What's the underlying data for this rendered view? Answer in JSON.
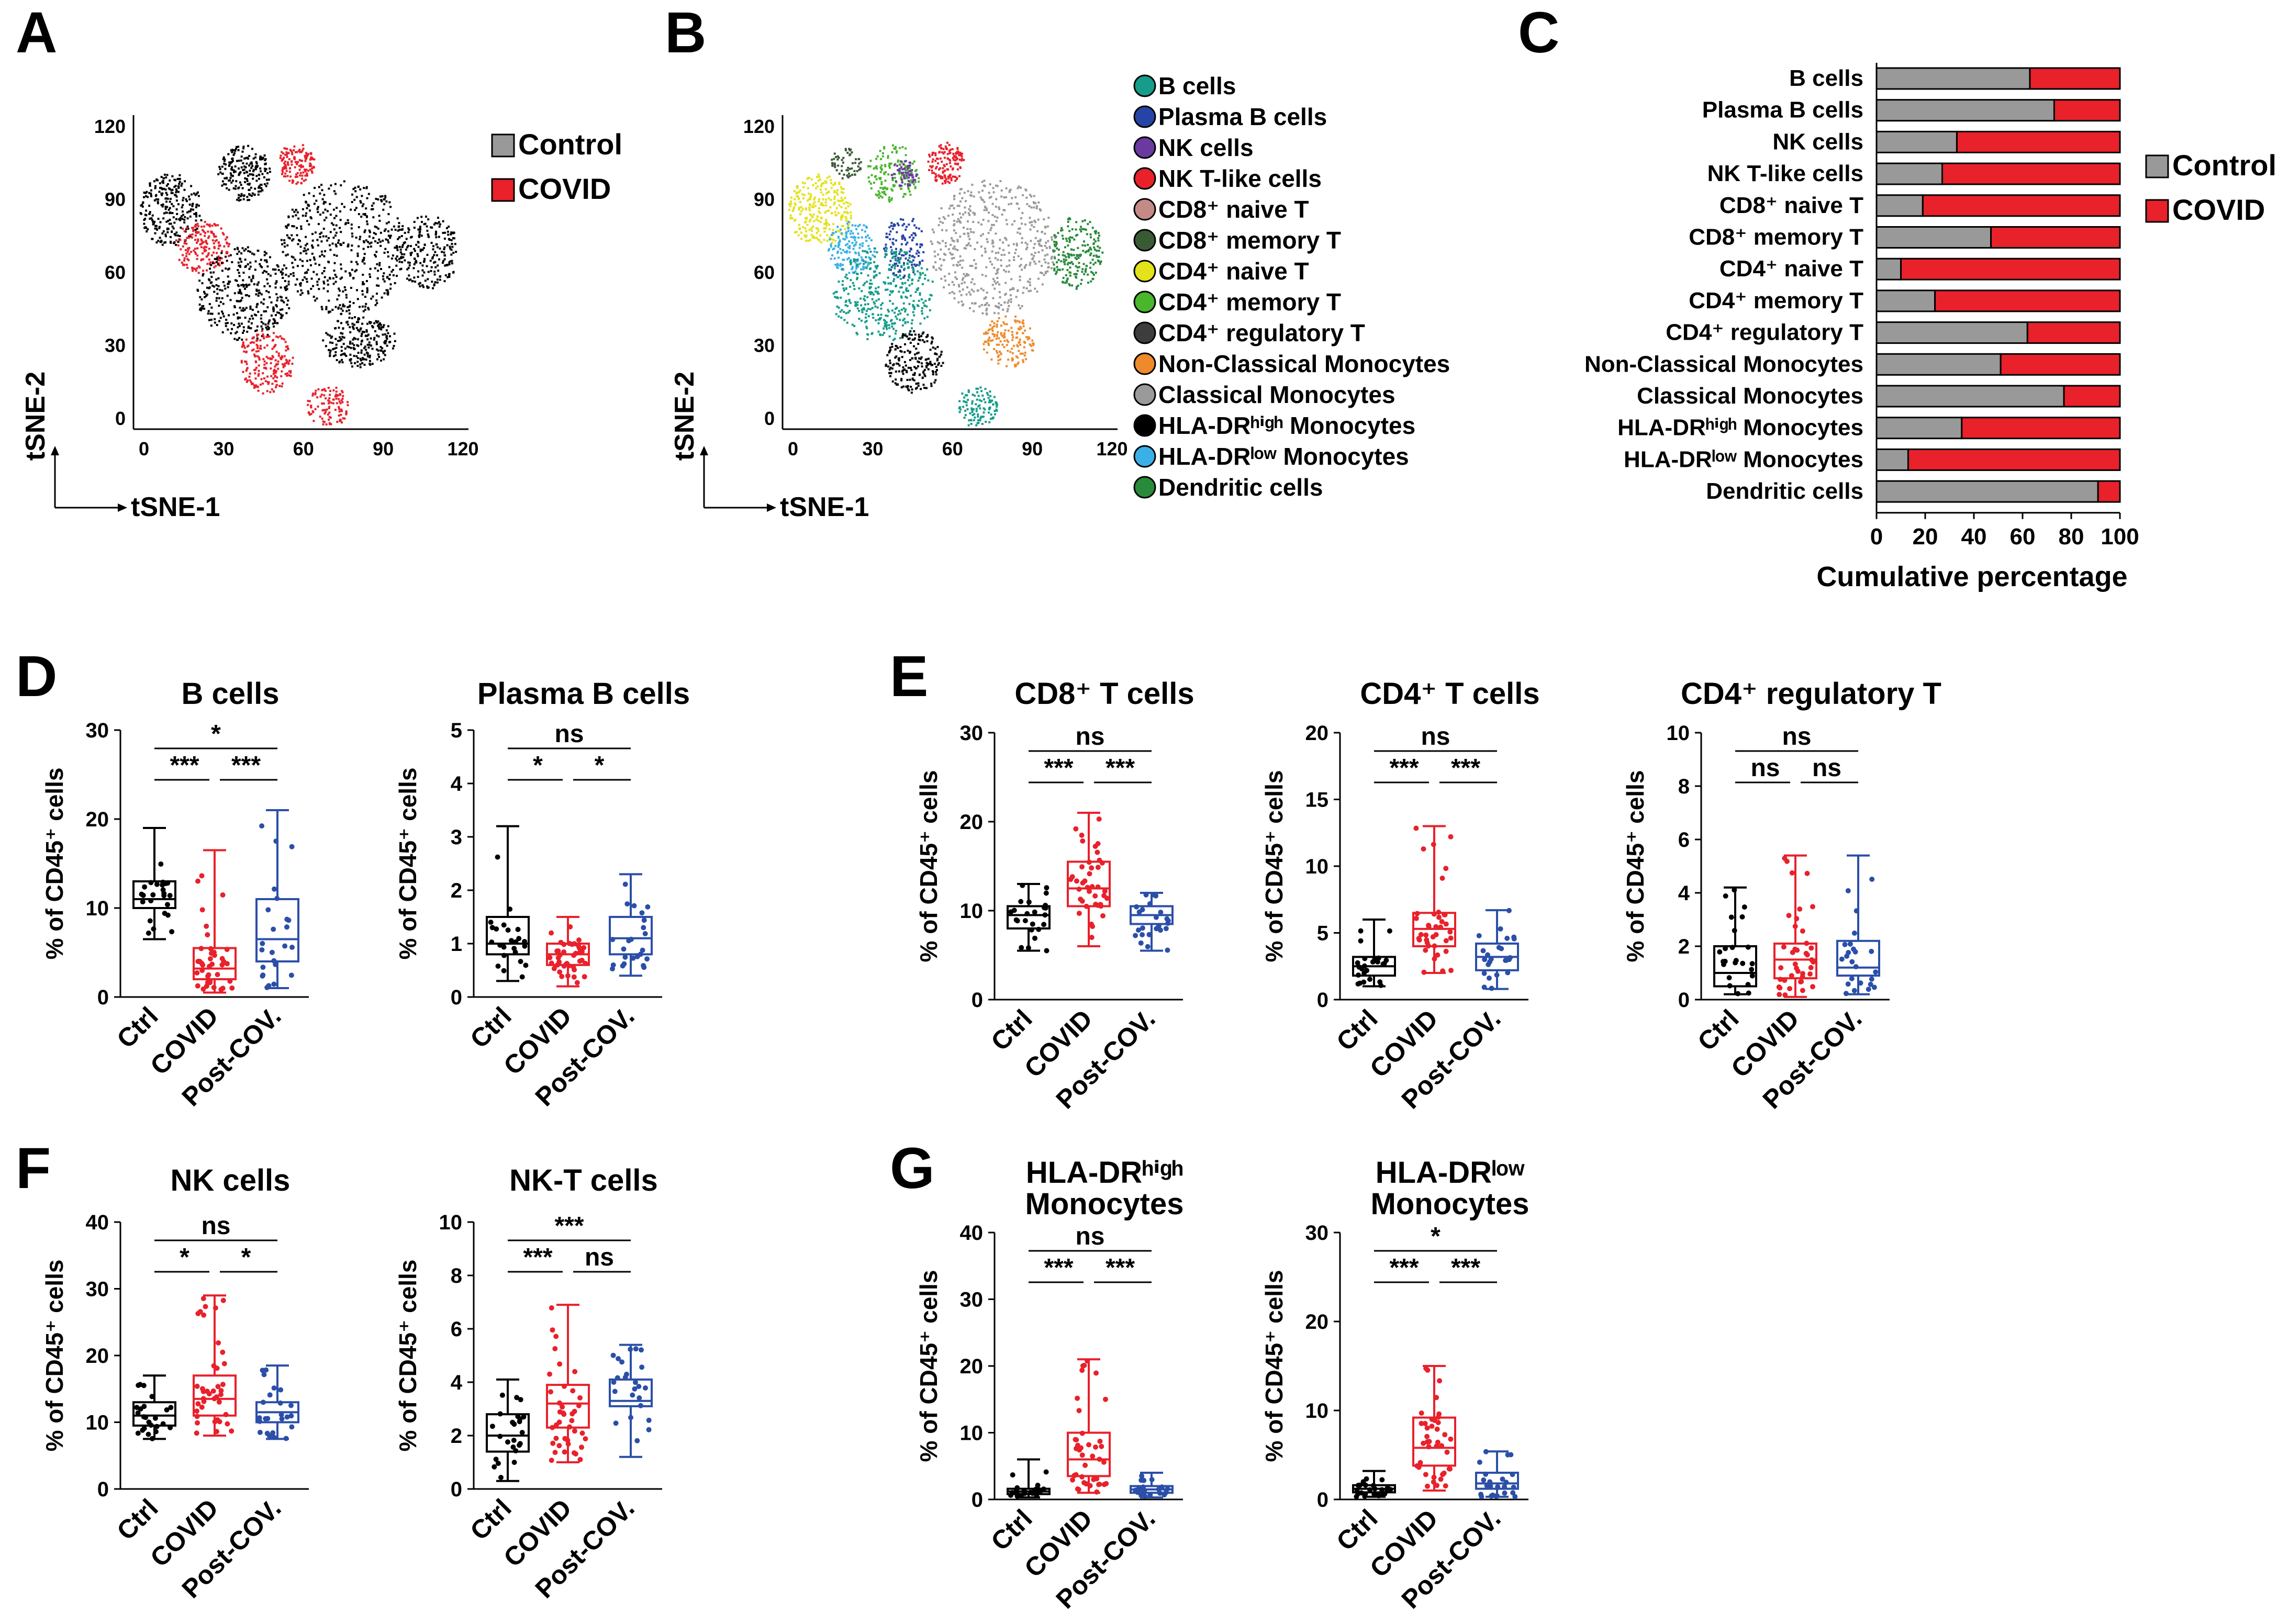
{
  "colors": {
    "control": "#000000",
    "covid": "#e8212b",
    "post": "#2b4fa8",
    "ctrlbar": "#999999"
  },
  "panel_labels": [
    "A",
    "B",
    "C",
    "D",
    "E",
    "F",
    "G"
  ],
  "tsne": {
    "xlabel": "tSNE-1",
    "ylabel": "tSNE-2",
    "ticks": [
      "0",
      "30",
      "60",
      "90",
      "120"
    ],
    "legendA": [
      "Control",
      "COVID"
    ],
    "legendB": [
      {
        "label": "B cells",
        "color": "#159c8a"
      },
      {
        "label": "Plasma B cells",
        "color": "#2643a6"
      },
      {
        "label": "NK cells",
        "color": "#6a3aa0"
      },
      {
        "label": "NK T-like cells",
        "color": "#e8212b"
      },
      {
        "label": "CD8⁺ naive T",
        "color": "#c48b86"
      },
      {
        "label": "CD8⁺ memory T",
        "color": "#3a5a36"
      },
      {
        "label": "CD4⁺ naive T",
        "color": "#e3e21b"
      },
      {
        "label": "CD4⁺ memory T",
        "color": "#49b62c"
      },
      {
        "label": "CD4⁺ regulatory T",
        "color": "#3d3d3d"
      },
      {
        "label": "Non-Classical Monocytes",
        "color": "#ee8a2c"
      },
      {
        "label": "Classical Monocytes",
        "color": "#9a9a9a"
      },
      {
        "label": "HLA-DRʰⁱᵍʰ Monocytes",
        "color": "#000000"
      },
      {
        "label": "HLA-DRˡᵒʷ Monocytes",
        "color": "#3ab0e6"
      },
      {
        "label": "Dendritic cells",
        "color": "#2a8a3c"
      }
    ]
  },
  "chart_data": [
    {
      "type": "bar",
      "panel": "C",
      "stacked": true,
      "orientation": "horizontal",
      "categories": [
        "B cells",
        "Plasma B cells",
        "NK cells",
        "NK T-like cells",
        "CD8⁺ naive T",
        "CD8⁺ memory T",
        "CD4⁺ naive T",
        "CD4⁺ memory T",
        "CD4⁺ regulatory T",
        "Non-Classical Monocytes",
        "Classical Monocytes",
        "HLA-DRʰⁱᵍʰ Monocytes",
        "HLA-DRˡᵒʷ Monocytes",
        "Dendritic cells"
      ],
      "series": [
        {
          "name": "Control",
          "values": [
            63,
            73,
            33,
            27,
            19,
            47,
            10,
            24,
            62,
            51,
            77,
            35,
            13,
            91
          ]
        },
        {
          "name": "COVID",
          "values": [
            37,
            27,
            67,
            73,
            81,
            53,
            90,
            76,
            38,
            49,
            23,
            65,
            87,
            9
          ]
        }
      ],
      "xlabel": "Cumulative percentage",
      "xlim": [
        0,
        100
      ],
      "xticks": [
        "0",
        "20",
        "40",
        "60",
        "80",
        "100"
      ],
      "legend": [
        "Control",
        "COVID"
      ]
    },
    {
      "type": "box",
      "panel": "D",
      "title": "B cells",
      "ylabel": "% of CD45⁺ cells",
      "ylim": [
        0,
        30
      ],
      "yticks": [
        "0",
        "10",
        "20",
        "30"
      ],
      "categories": [
        "Ctrl",
        "COVID",
        "Post-COV."
      ],
      "boxes": [
        {
          "min": 6.5,
          "q1": 10,
          "median": 11,
          "q3": 13,
          "max": 19
        },
        {
          "min": 0.5,
          "q1": 2,
          "median": 3.2,
          "q3": 5.5,
          "max": 16.5
        },
        {
          "min": 1,
          "q1": 4,
          "median": 6.5,
          "q3": 11,
          "max": 21
        }
      ],
      "sig": {
        "left": "***",
        "right": "***",
        "top": "*"
      }
    },
    {
      "type": "box",
      "panel": "D",
      "title": "Plasma B cells",
      "ylabel": "% of CD45⁺ cells",
      "ylim": [
        0,
        5
      ],
      "yticks": [
        "0",
        "1",
        "2",
        "3",
        "4",
        "5"
      ],
      "categories": [
        "Ctrl",
        "COVID",
        "Post-COV."
      ],
      "boxes": [
        {
          "min": 0.3,
          "q1": 0.8,
          "median": 1.0,
          "q3": 1.5,
          "max": 3.2
        },
        {
          "min": 0.2,
          "q1": 0.6,
          "median": 0.8,
          "q3": 1.0,
          "max": 1.5
        },
        {
          "min": 0.4,
          "q1": 0.8,
          "median": 1.1,
          "q3": 1.5,
          "max": 2.3
        }
      ],
      "sig": {
        "left": "*",
        "right": "*",
        "top": "ns"
      }
    },
    {
      "type": "box",
      "panel": "E",
      "title": "CD8⁺ T cells",
      "ylabel": "% of CD45⁺ cells",
      "ylim": [
        0,
        30
      ],
      "yticks": [
        "0",
        "10",
        "20",
        "30"
      ],
      "categories": [
        "Ctrl",
        "COVID",
        "Post-COV."
      ],
      "boxes": [
        {
          "min": 5.5,
          "q1": 8,
          "median": 9.5,
          "q3": 10.5,
          "max": 13
        },
        {
          "min": 6,
          "q1": 10.5,
          "median": 12.5,
          "q3": 15.5,
          "max": 21
        },
        {
          "min": 5.5,
          "q1": 8.5,
          "median": 9.5,
          "q3": 10.5,
          "max": 12
        }
      ],
      "sig": {
        "left": "***",
        "right": "***",
        "top": "ns"
      }
    },
    {
      "type": "box",
      "panel": "E",
      "title": "CD4⁺ T cells",
      "ylabel": "% of CD45⁺ cells",
      "ylim": [
        0,
        20
      ],
      "yticks": [
        "0",
        "5",
        "10",
        "15",
        "20"
      ],
      "categories": [
        "Ctrl",
        "COVID",
        "Post-COV."
      ],
      "boxes": [
        {
          "min": 1,
          "q1": 1.8,
          "median": 2.5,
          "q3": 3.2,
          "max": 6
        },
        {
          "min": 2,
          "q1": 4,
          "median": 5.3,
          "q3": 6.5,
          "max": 13
        },
        {
          "min": 0.8,
          "q1": 2.2,
          "median": 3.2,
          "q3": 4.2,
          "max": 6.7
        }
      ],
      "sig": {
        "left": "***",
        "right": "***",
        "top": "ns"
      }
    },
    {
      "type": "box",
      "panel": "E",
      "title": "CD4⁺ regulatory T",
      "ylabel": "% of CD45⁺ cells",
      "ylim": [
        0,
        10
      ],
      "yticks": [
        "0",
        "2",
        "4",
        "6",
        "8",
        "10"
      ],
      "categories": [
        "Ctrl",
        "COVID",
        "Post-COV."
      ],
      "boxes": [
        {
          "min": 0.2,
          "q1": 0.5,
          "median": 1.0,
          "q3": 2.0,
          "max": 4.2
        },
        {
          "min": 0.1,
          "q1": 0.8,
          "median": 1.5,
          "q3": 2.1,
          "max": 5.4
        },
        {
          "min": 0.2,
          "q1": 0.9,
          "median": 1.2,
          "q3": 2.2,
          "max": 5.4
        }
      ],
      "sig": {
        "left": "ns",
        "right": "ns",
        "top": "ns"
      }
    },
    {
      "type": "box",
      "panel": "F",
      "title": "NK cells",
      "ylabel": "% of CD45⁺ cells",
      "ylim": [
        0,
        40
      ],
      "yticks": [
        "0",
        "10",
        "20",
        "30",
        "40"
      ],
      "categories": [
        "Ctrl",
        "COVID",
        "Post-COV."
      ],
      "boxes": [
        {
          "min": 7.5,
          "q1": 9.5,
          "median": 11,
          "q3": 13,
          "max": 17
        },
        {
          "min": 8,
          "q1": 11,
          "median": 13.5,
          "q3": 17,
          "max": 29
        },
        {
          "min": 7.5,
          "q1": 10,
          "median": 11.5,
          "q3": 13,
          "max": 18.5
        }
      ],
      "sig": {
        "left": "*",
        "right": "*",
        "top": "ns"
      }
    },
    {
      "type": "box",
      "panel": "F",
      "title": "NK-T cells",
      "ylabel": "% of CD45⁺ cells",
      "ylim": [
        0,
        10
      ],
      "yticks": [
        "0",
        "2",
        "4",
        "6",
        "8",
        "10"
      ],
      "categories": [
        "Ctrl",
        "COVID",
        "Post-COV."
      ],
      "boxes": [
        {
          "min": 0.3,
          "q1": 1.4,
          "median": 2.0,
          "q3": 2.8,
          "max": 4.1
        },
        {
          "min": 1,
          "q1": 2.3,
          "median": 3.2,
          "q3": 3.9,
          "max": 6.9
        },
        {
          "min": 1.2,
          "q1": 3.1,
          "median": 3.3,
          "q3": 4.1,
          "max": 5.4
        }
      ],
      "sig": {
        "left": "***",
        "right": "ns",
        "top": "***"
      }
    },
    {
      "type": "box",
      "panel": "G",
      "title": "HLA-DRʰⁱᵍʰ Monocytes",
      "ylabel": "% of CD45⁺ cells",
      "ylim": [
        0,
        40
      ],
      "yticks": [
        "0",
        "10",
        "20",
        "30",
        "40"
      ],
      "categories": [
        "Ctrl",
        "COVID",
        "Post-COV."
      ],
      "boxes": [
        {
          "min": 0.3,
          "q1": 0.8,
          "median": 1.2,
          "q3": 1.6,
          "max": 6
        },
        {
          "min": 1,
          "q1": 3.5,
          "median": 6,
          "q3": 10,
          "max": 21
        },
        {
          "min": 0.3,
          "q1": 1,
          "median": 1.5,
          "q3": 2,
          "max": 4
        }
      ],
      "sig": {
        "left": "***",
        "right": "***",
        "top": "ns"
      }
    },
    {
      "type": "box",
      "panel": "G",
      "title": "HLA-DRˡᵒʷ Monocytes",
      "ylabel": "% of CD45⁺ cells",
      "ylim": [
        0,
        30
      ],
      "yticks": [
        "0",
        "10",
        "20",
        "30"
      ],
      "categories": [
        "Ctrl",
        "COVID",
        "Post-COV."
      ],
      "boxes": [
        {
          "min": 0.3,
          "q1": 0.8,
          "median": 1.2,
          "q3": 1.6,
          "max": 3.2
        },
        {
          "min": 1,
          "q1": 3.8,
          "median": 5.8,
          "q3": 9.2,
          "max": 15
        },
        {
          "min": 0.3,
          "q1": 1.2,
          "median": 1.8,
          "q3": 3,
          "max": 5.4
        }
      ],
      "sig": {
        "left": "***",
        "right": "***",
        "top": "*"
      }
    }
  ]
}
